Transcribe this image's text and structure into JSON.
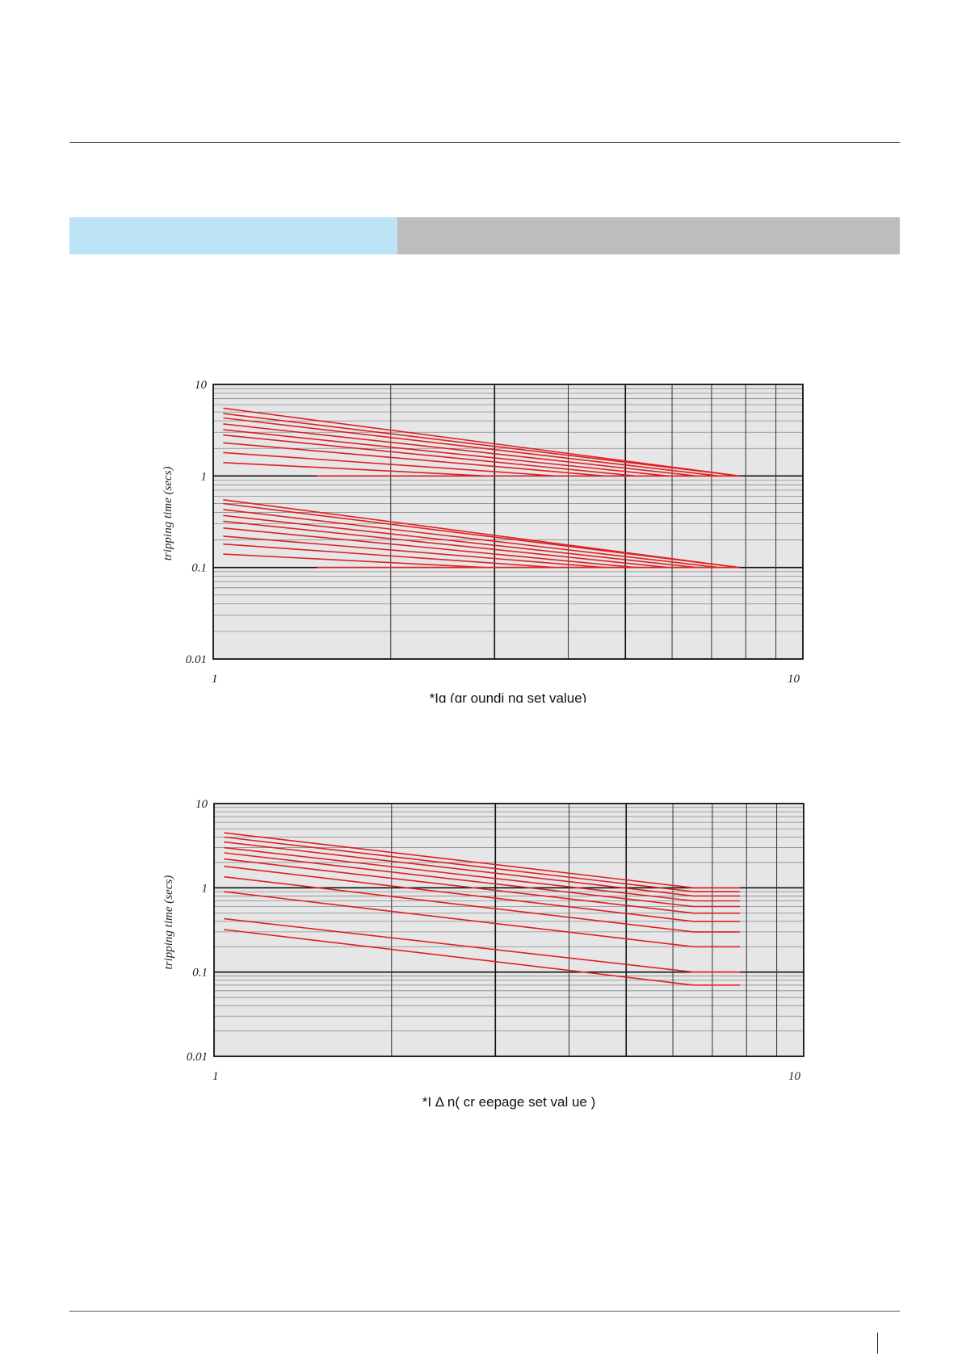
{
  "header": {},
  "chart_data": [
    {
      "type": "line",
      "x_scale": "log",
      "y_scale": "log",
      "xlim": [
        1,
        10
      ],
      "ylim": [
        0.01,
        10
      ],
      "x_ticks": [
        "1",
        "10"
      ],
      "y_ticks": [
        "10",
        "1",
        "0.1",
        "0.01"
      ],
      "xlabel": "*Ig  (gr oundi ng  set   value)",
      "ylabel": "tripping time (secs)",
      "grid": true,
      "line_color": "#e02020",
      "series": [
        {
          "x": [
            1.04,
            7.8
          ],
          "y": [
            5.5,
            1.0
          ]
        },
        {
          "x": [
            1.04,
            7.8
          ],
          "y": [
            4.8,
            1.0
          ]
        },
        {
          "x": [
            1.04,
            7.2
          ],
          "y": [
            4.3,
            1.0
          ]
        },
        {
          "x": [
            1.04,
            6.6
          ],
          "y": [
            3.7,
            1.0
          ]
        },
        {
          "x": [
            1.04,
            5.9
          ],
          "y": [
            3.2,
            1.0
          ]
        },
        {
          "x": [
            1.04,
            5.2
          ],
          "y": [
            2.8,
            1.0
          ]
        },
        {
          "x": [
            1.04,
            4.6
          ],
          "y": [
            2.3,
            1.0
          ]
        },
        {
          "x": [
            1.04,
            3.8
          ],
          "y": [
            1.8,
            1.0
          ]
        },
        {
          "x": [
            1.04,
            2.9
          ],
          "y": [
            1.4,
            1.0
          ]
        },
        {
          "x": [
            1.5,
            7.8
          ],
          "y": [
            1.0,
            1.0
          ]
        },
        {
          "x": [
            1.04,
            7.8
          ],
          "y": [
            0.55,
            0.1
          ]
        },
        {
          "x": [
            1.04,
            7.8
          ],
          "y": [
            0.5,
            0.1
          ]
        },
        {
          "x": [
            1.04,
            7.2
          ],
          "y": [
            0.43,
            0.1
          ]
        },
        {
          "x": [
            1.04,
            6.6
          ],
          "y": [
            0.37,
            0.1
          ]
        },
        {
          "x": [
            1.04,
            5.9
          ],
          "y": [
            0.32,
            0.1
          ]
        },
        {
          "x": [
            1.04,
            5.2
          ],
          "y": [
            0.27,
            0.1
          ]
        },
        {
          "x": [
            1.04,
            4.6
          ],
          "y": [
            0.22,
            0.1
          ]
        },
        {
          "x": [
            1.04,
            3.8
          ],
          "y": [
            0.18,
            0.1
          ]
        },
        {
          "x": [
            1.04,
            2.9
          ],
          "y": [
            0.14,
            0.1
          ]
        },
        {
          "x": [
            1.5,
            7.8
          ],
          "y": [
            0.1,
            0.1
          ]
        }
      ]
    },
    {
      "type": "line",
      "x_scale": "log",
      "y_scale": "log",
      "xlim": [
        1,
        10
      ],
      "ylim": [
        0.01,
        10
      ],
      "x_ticks": [
        "1",
        "10"
      ],
      "y_ticks": [
        "10",
        "1",
        "0.1",
        "0.01"
      ],
      "xlabel": "*I Δ n( cr eepage  set   val ue )",
      "ylabel": "tripping time (secs)",
      "grid": true,
      "line_color": "#e02020",
      "series": [
        {
          "x": [
            1.04,
            6.5,
            7.8
          ],
          "y": [
            4.5,
            1.0,
            1.0
          ]
        },
        {
          "x": [
            1.04,
            6.5,
            7.8
          ],
          "y": [
            4.0,
            0.9,
            0.9
          ]
        },
        {
          "x": [
            1.04,
            6.5,
            7.8
          ],
          "y": [
            3.5,
            0.8,
            0.8
          ]
        },
        {
          "x": [
            1.04,
            6.5,
            7.8
          ],
          "y": [
            3.0,
            0.7,
            0.7
          ]
        },
        {
          "x": [
            1.04,
            6.5,
            7.8
          ],
          "y": [
            2.6,
            0.6,
            0.6
          ]
        },
        {
          "x": [
            1.04,
            6.5,
            7.8
          ],
          "y": [
            2.2,
            0.5,
            0.5
          ]
        },
        {
          "x": [
            1.04,
            6.5,
            7.8
          ],
          "y": [
            1.8,
            0.4,
            0.4
          ]
        },
        {
          "x": [
            1.04,
            6.5,
            7.8
          ],
          "y": [
            1.35,
            0.3,
            0.3
          ]
        },
        {
          "x": [
            1.04,
            6.5,
            7.8
          ],
          "y": [
            0.9,
            0.2,
            0.2
          ]
        },
        {
          "x": [
            1.04,
            6.5,
            7.8
          ],
          "y": [
            0.43,
            0.1,
            0.1
          ]
        },
        {
          "x": [
            1.04,
            6.5,
            7.8
          ],
          "y": [
            0.32,
            0.07,
            0.07
          ]
        }
      ]
    }
  ]
}
